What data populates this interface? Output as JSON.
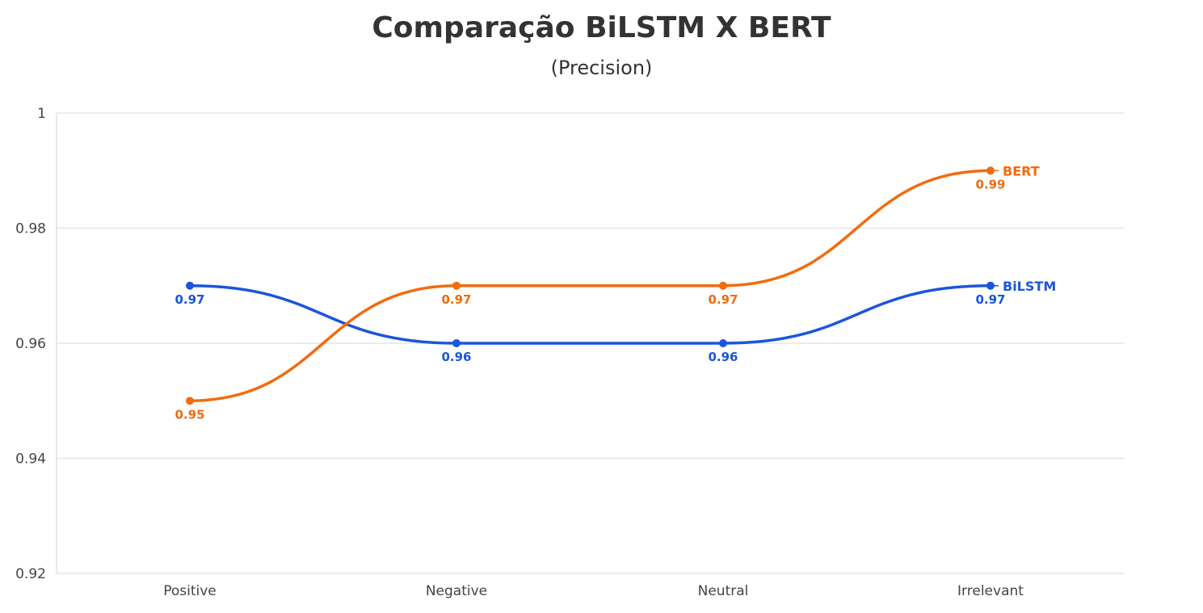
{
  "chart_data": {
    "type": "line",
    "title": "Comparação BiLSTM X BERT",
    "subtitle": "(Precision)",
    "xlabel": "",
    "ylabel": "",
    "categories": [
      "Positive",
      "Negative",
      "Neutral",
      "Irrelevant"
    ],
    "ylim": [
      0.92,
      1
    ],
    "yticks": [
      "0.92",
      "0.94",
      "0.96",
      "0.98",
      "1"
    ],
    "grid": true,
    "curve": "smooth",
    "series": [
      {
        "name": "BiLSTM",
        "values": [
          0.97,
          0.96,
          0.96,
          0.97
        ],
        "labels": [
          "0.97",
          "0.96",
          "0.96",
          "0.97"
        ],
        "color": "#1a56db"
      },
      {
        "name": "BERT",
        "values": [
          0.95,
          0.97,
          0.97,
          0.99
        ],
        "labels": [
          "0.95",
          "0.97",
          "0.97",
          "0.99"
        ],
        "color": "#f26b0f"
      }
    ]
  }
}
